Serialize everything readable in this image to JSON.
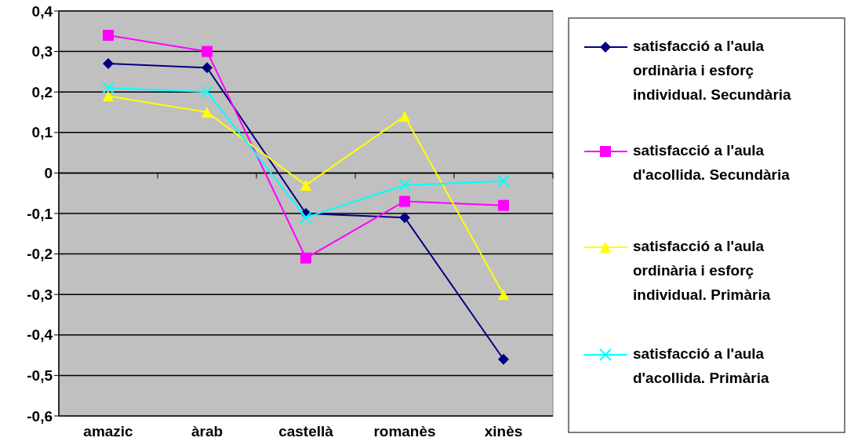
{
  "chart_data": {
    "type": "line",
    "categories": [
      "amazic",
      "àrab",
      "castellà",
      "romanès",
      "xinès"
    ],
    "series": [
      {
        "name": "satisfacció a l'aula ordinària i esforç individual. Secundària",
        "color": "#000080",
        "marker": "diamond",
        "values": [
          0.27,
          0.26,
          -0.1,
          -0.11,
          -0.46
        ]
      },
      {
        "name": "satisfacció a l'aula d'acollida. Secundària",
        "color": "#ff00ff",
        "marker": "square",
        "values": [
          0.34,
          0.3,
          -0.21,
          -0.07,
          -0.08
        ]
      },
      {
        "name": "satisfacció a l'aula ordinària i esforç individual. Primària",
        "color": "#ffff00",
        "marker": "triangle",
        "values": [
          0.19,
          0.15,
          -0.03,
          0.14,
          -0.3
        ]
      },
      {
        "name": "satisfacció a l'aula d'acollida. Primària",
        "color": "#00ffff",
        "marker": "cross",
        "values": [
          0.21,
          0.2,
          -0.11,
          -0.03,
          -0.02
        ]
      }
    ],
    "ylim": [
      -0.6,
      0.4
    ],
    "yticks": [
      {
        "value": -0.6,
        "label": "-0,6"
      },
      {
        "value": -0.5,
        "label": "-0,5"
      },
      {
        "value": -0.4,
        "label": "-0,4"
      },
      {
        "value": -0.3,
        "label": "-0,3"
      },
      {
        "value": -0.2,
        "label": "-0,2"
      },
      {
        "value": -0.1,
        "label": "-0,1"
      },
      0,
      {
        "value": 0.1,
        "label": "0,1"
      },
      {
        "value": 0.2,
        "label": "0,2"
      },
      {
        "value": 0.3,
        "label": "0,3"
      },
      {
        "value": 0.4,
        "label": "0,4"
      }
    ],
    "grid": "y",
    "legend": "right"
  }
}
